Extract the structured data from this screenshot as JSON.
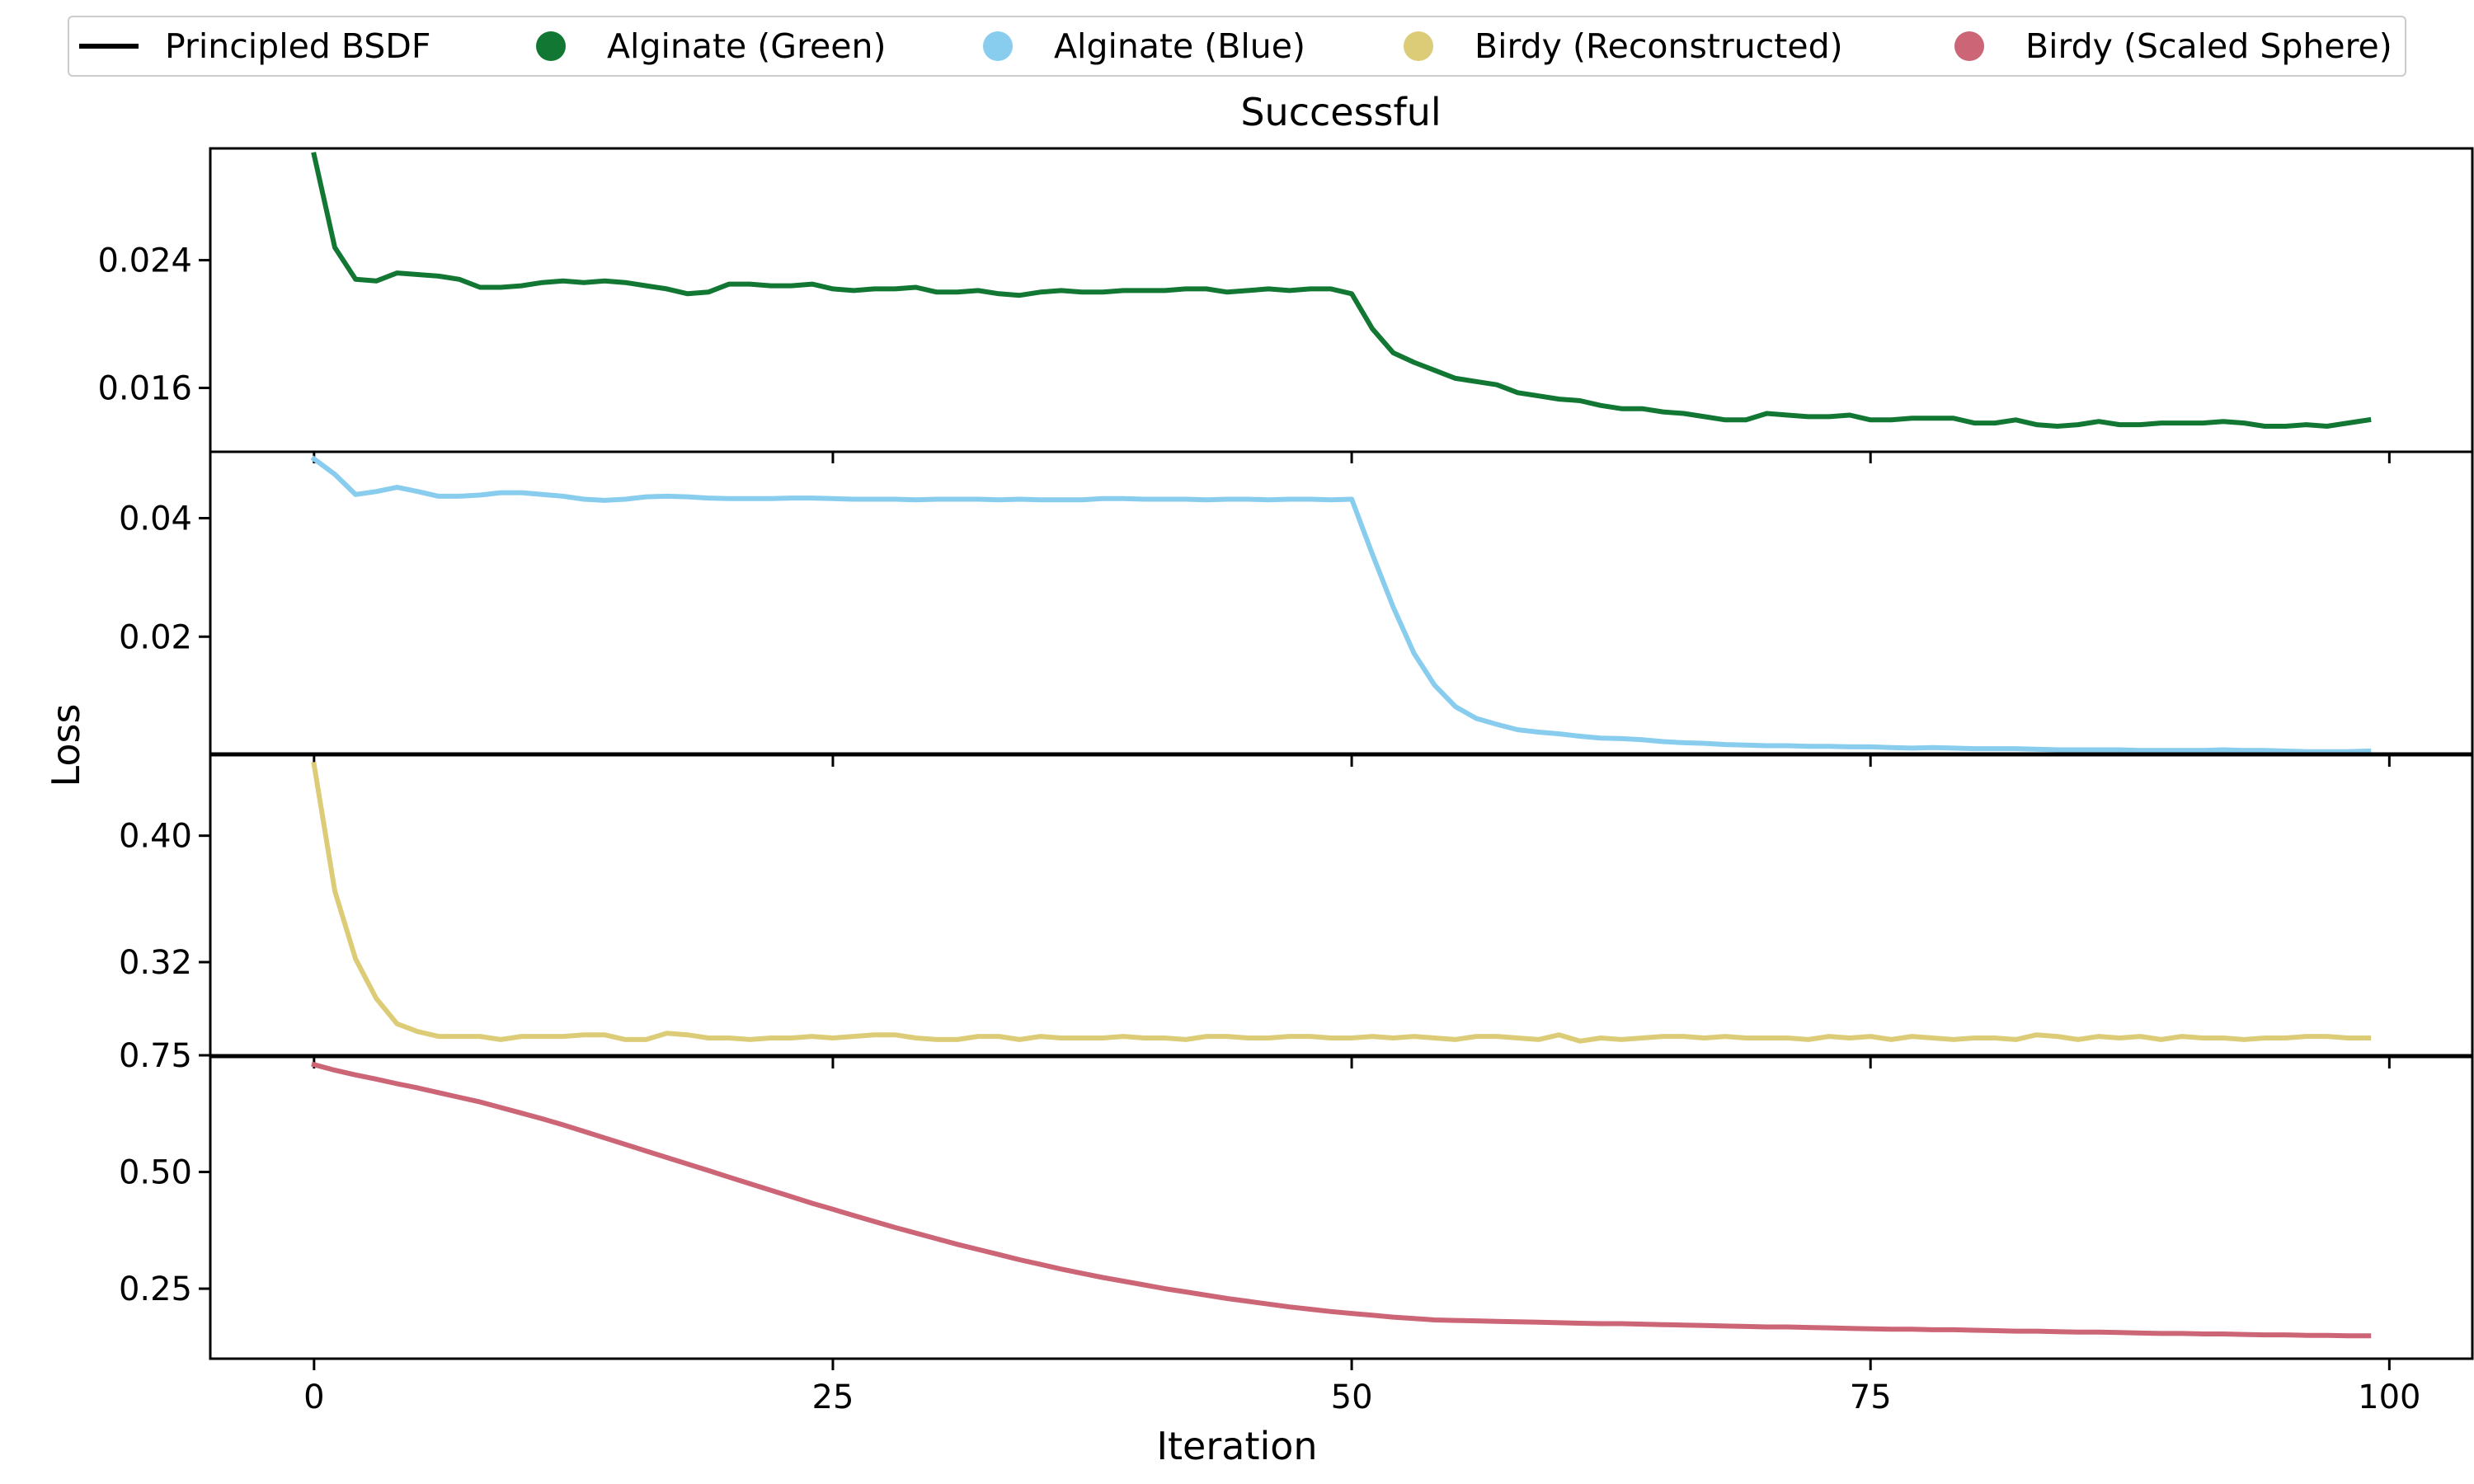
{
  "legend": {
    "items": [
      {
        "label": "Principled BSDF",
        "marker": "line",
        "color": "#000000"
      },
      {
        "label": "Alginate (Green)",
        "marker": "dot",
        "color": "#117733"
      },
      {
        "label": "Alginate (Blue)",
        "marker": "dot",
        "color": "#88CCEE"
      },
      {
        "label": "Birdy (Reconstructed)",
        "marker": "dot",
        "color": "#DDCC77"
      },
      {
        "label": "Birdy (Scaled Sphere)",
        "marker": "dot",
        "color": "#CC6677"
      }
    ]
  },
  "chart_data": {
    "type": "line",
    "title": "Successful",
    "xlabel": "Iteration",
    "ylabel": "Loss",
    "xlim": [
      -5,
      104
    ],
    "xticks": [
      0,
      25,
      50,
      75,
      100
    ],
    "x": [
      0,
      1,
      2,
      3,
      4,
      5,
      6,
      7,
      8,
      9,
      10,
      11,
      12,
      13,
      14,
      15,
      16,
      17,
      18,
      19,
      20,
      21,
      22,
      23,
      24,
      25,
      26,
      27,
      28,
      29,
      30,
      31,
      32,
      33,
      34,
      35,
      36,
      37,
      38,
      39,
      40,
      41,
      42,
      43,
      44,
      45,
      46,
      47,
      48,
      49,
      50,
      51,
      52,
      53,
      54,
      55,
      56,
      57,
      58,
      59,
      60,
      61,
      62,
      63,
      64,
      65,
      66,
      67,
      68,
      69,
      70,
      71,
      72,
      73,
      74,
      75,
      76,
      77,
      78,
      79,
      80,
      81,
      82,
      83,
      84,
      85,
      86,
      87,
      88,
      89,
      90,
      91,
      92,
      93,
      94,
      95,
      96,
      97,
      98,
      99
    ],
    "subplots": [
      {
        "series": [
          {
            "name": "Alginate (Green)",
            "color": "#117733",
            "values": [
              0.0306,
              0.0248,
              0.0228,
              0.0227,
              0.0232,
              0.0231,
              0.023,
              0.0228,
              0.0223,
              0.0223,
              0.0224,
              0.0226,
              0.0227,
              0.0226,
              0.0227,
              0.0226,
              0.0224,
              0.0222,
              0.0219,
              0.022,
              0.0225,
              0.0225,
              0.0224,
              0.0224,
              0.0225,
              0.0222,
              0.0221,
              0.0222,
              0.0222,
              0.0223,
              0.022,
              0.022,
              0.0221,
              0.0219,
              0.0218,
              0.022,
              0.0221,
              0.022,
              0.022,
              0.0221,
              0.0221,
              0.0221,
              0.0222,
              0.0222,
              0.022,
              0.0221,
              0.0222,
              0.0221,
              0.0222,
              0.0222,
              0.0219,
              0.0197,
              0.0182,
              0.0176,
              0.0171,
              0.0166,
              0.0164,
              0.0162,
              0.0157,
              0.0155,
              0.0153,
              0.0152,
              0.0149,
              0.0147,
              0.0147,
              0.0145,
              0.0144,
              0.0142,
              0.014,
              0.014,
              0.0144,
              0.0143,
              0.0142,
              0.0142,
              0.0143,
              0.014,
              0.014,
              0.0141,
              0.0141,
              0.0141,
              0.0138,
              0.0138,
              0.014,
              0.0137,
              0.0136,
              0.0137,
              0.0139,
              0.0137,
              0.0137,
              0.0138,
              0.0138,
              0.0138,
              0.0139,
              0.0138,
              0.0136,
              0.0136,
              0.0137,
              0.0136,
              0.0138,
              0.014
            ]
          }
        ],
        "yticks": [
          0.016,
          0.024
        ],
        "ytick_labels": [
          "0.016",
          "0.024"
        ],
        "ylim": [
          0.012,
          0.031
        ]
      },
      {
        "series": [
          {
            "name": "Alginate (Blue)",
            "color": "#88CCEE",
            "values": [
              0.05,
              0.0474,
              0.044,
              0.0445,
              0.0452,
              0.0445,
              0.0437,
              0.0437,
              0.0439,
              0.0443,
              0.0443,
              0.044,
              0.0437,
              0.0432,
              0.043,
              0.0432,
              0.0436,
              0.0437,
              0.0436,
              0.0434,
              0.0433,
              0.0433,
              0.0433,
              0.0434,
              0.0434,
              0.0433,
              0.0432,
              0.0432,
              0.0432,
              0.0431,
              0.0432,
              0.0432,
              0.0432,
              0.0431,
              0.0432,
              0.0431,
              0.0431,
              0.0431,
              0.0433,
              0.0433,
              0.0432,
              0.0432,
              0.0432,
              0.0431,
              0.0432,
              0.0432,
              0.0431,
              0.0432,
              0.0432,
              0.0431,
              0.0432,
              0.0339,
              0.025,
              0.0172,
              0.0118,
              0.0082,
              0.0062,
              0.0052,
              0.0043,
              0.0039,
              0.0036,
              0.0032,
              0.0029,
              0.0028,
              0.0026,
              0.0023,
              0.0021,
              0.002,
              0.0018,
              0.0017,
              0.0016,
              0.0016,
              0.0015,
              0.0015,
              0.0014,
              0.0014,
              0.0013,
              0.0012,
              0.0013,
              0.0012,
              0.0011,
              0.0011,
              0.0011,
              0.001,
              0.0009,
              0.0009,
              0.0009,
              0.0009,
              0.0008,
              0.0008,
              0.0008,
              0.0008,
              0.0009,
              0.0008,
              0.0008,
              0.0007,
              0.0006,
              0.0006,
              0.0006,
              0.0007
            ]
          }
        ],
        "yticks": [
          0.02,
          0.04
        ],
        "ytick_labels": [
          "0.02",
          "0.04"
        ],
        "ylim": [
          0.0,
          0.0512
        ]
      },
      {
        "series": [
          {
            "name": "Birdy (Reconstructed)",
            "color": "#DDCC77",
            "values": [
              0.445,
              0.365,
              0.322,
              0.297,
              0.281,
              0.276,
              0.273,
              0.273,
              0.273,
              0.271,
              0.273,
              0.273,
              0.273,
              0.274,
              0.274,
              0.271,
              0.271,
              0.275,
              0.274,
              0.272,
              0.272,
              0.271,
              0.272,
              0.272,
              0.273,
              0.272,
              0.273,
              0.274,
              0.274,
              0.272,
              0.271,
              0.271,
              0.273,
              0.273,
              0.271,
              0.273,
              0.272,
              0.272,
              0.272,
              0.273,
              0.272,
              0.272,
              0.271,
              0.273,
              0.273,
              0.272,
              0.272,
              0.273,
              0.273,
              0.272,
              0.272,
              0.273,
              0.272,
              0.273,
              0.272,
              0.271,
              0.273,
              0.273,
              0.272,
              0.271,
              0.274,
              0.27,
              0.272,
              0.271,
              0.272,
              0.273,
              0.273,
              0.272,
              0.273,
              0.272,
              0.272,
              0.272,
              0.271,
              0.273,
              0.272,
              0.273,
              0.271,
              0.273,
              0.272,
              0.271,
              0.272,
              0.272,
              0.271,
              0.274,
              0.273,
              0.271,
              0.273,
              0.272,
              0.273,
              0.271,
              0.273,
              0.272,
              0.272,
              0.271,
              0.272,
              0.272,
              0.273,
              0.273,
              0.272,
              0.272
            ]
          }
        ],
        "yticks": [
          0.32,
          0.4
        ],
        "ytick_labels": [
          "0.32",
          "0.40"
        ],
        "ylim": [
          0.26,
          0.452
        ]
      },
      {
        "series": [
          {
            "name": "Birdy (Scaled Sphere)",
            "color": "#CC6677",
            "values": [
              0.73,
              0.718,
              0.708,
              0.699,
              0.689,
              0.68,
              0.67,
              0.66,
              0.65,
              0.638,
              0.626,
              0.614,
              0.601,
              0.587,
              0.573,
              0.559,
              0.545,
              0.531,
              0.517,
              0.503,
              0.489,
              0.475,
              0.461,
              0.447,
              0.433,
              0.42,
              0.407,
              0.394,
              0.381,
              0.369,
              0.357,
              0.345,
              0.334,
              0.323,
              0.312,
              0.302,
              0.292,
              0.283,
              0.274,
              0.266,
              0.258,
              0.25,
              0.243,
              0.236,
              0.229,
              0.223,
              0.217,
              0.211,
              0.206,
              0.201,
              0.197,
              0.193,
              0.189,
              0.186,
              0.183,
              0.182,
              0.181,
              0.18,
              0.179,
              0.178,
              0.177,
              0.176,
              0.175,
              0.175,
              0.174,
              0.173,
              0.172,
              0.171,
              0.17,
              0.169,
              0.168,
              0.168,
              0.167,
              0.166,
              0.165,
              0.164,
              0.163,
              0.163,
              0.162,
              0.162,
              0.161,
              0.16,
              0.159,
              0.159,
              0.158,
              0.157,
              0.157,
              0.156,
              0.155,
              0.154,
              0.154,
              0.153,
              0.153,
              0.152,
              0.151,
              0.151,
              0.15,
              0.15,
              0.149,
              0.149
            ]
          }
        ],
        "yticks": [
          0.25,
          0.5,
          0.75
        ],
        "ytick_labels": [
          "0.25",
          "0.50",
          "0.75"
        ],
        "ylim": [
          0.1,
          0.75
        ]
      }
    ],
    "grid": false,
    "legend_position": "top"
  }
}
